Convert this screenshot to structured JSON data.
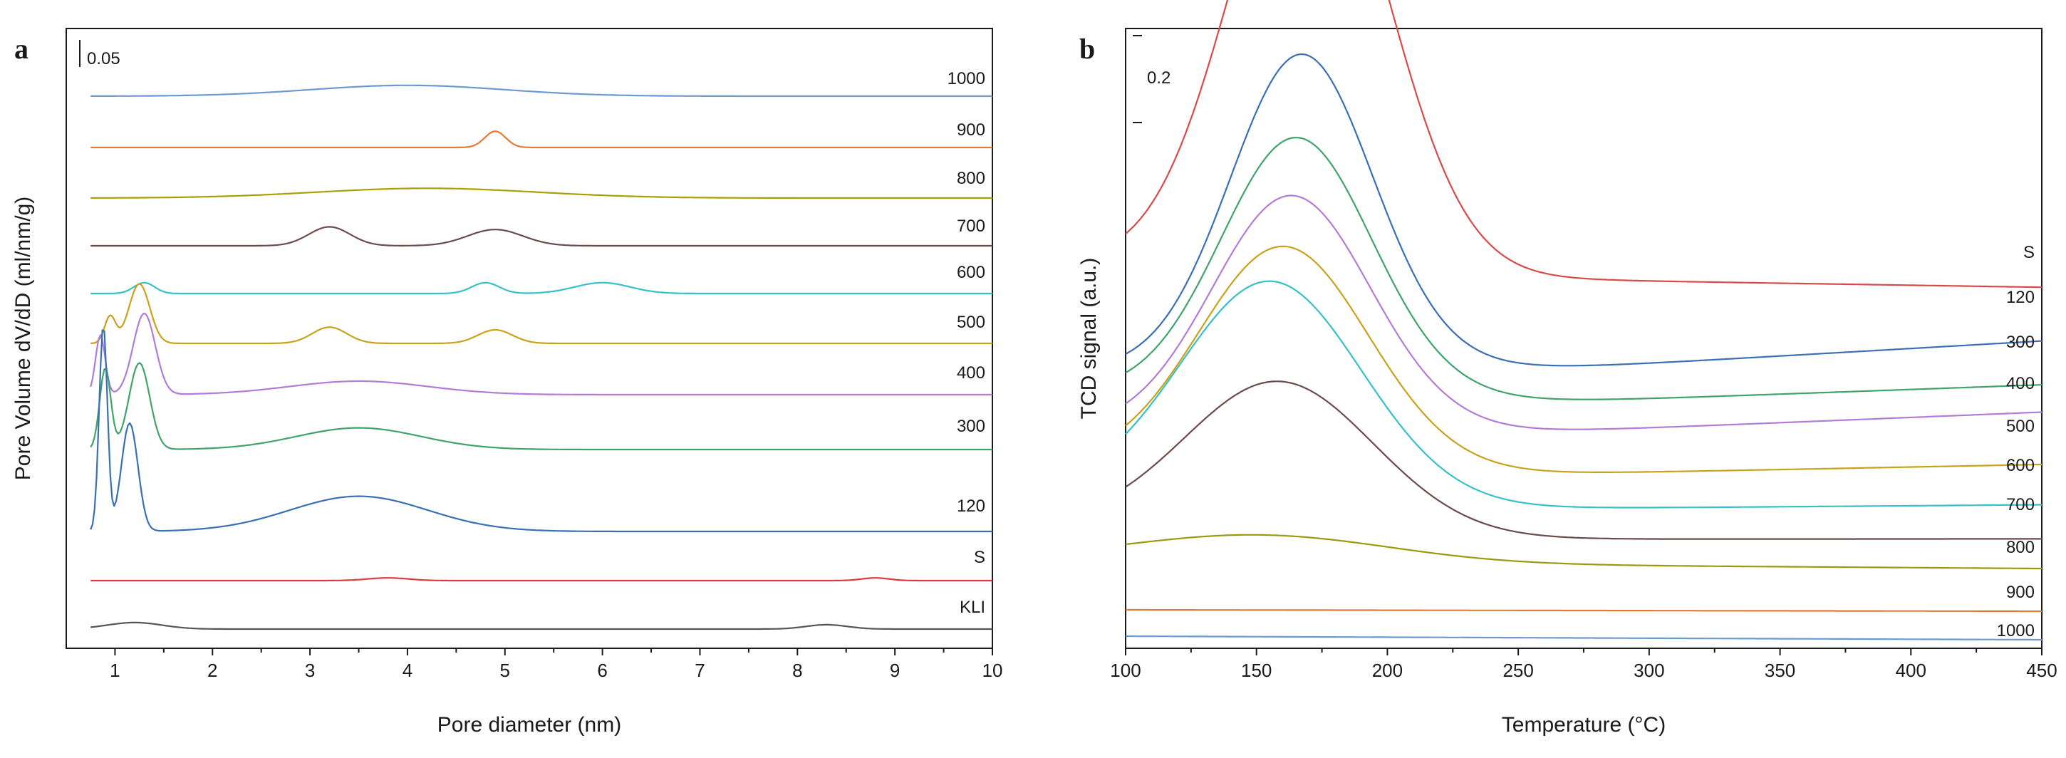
{
  "chart_data": [
    {
      "type": "line",
      "panel_label": "a",
      "title": "",
      "xlabel": "Pore diameter (nm)",
      "ylabel": "Pore Volume dV/dD (ml/nm/g)",
      "xlim": [
        0.5,
        10
      ],
      "xticks": [
        "1",
        "2",
        "3",
        "4",
        "5",
        "6",
        "7",
        "8",
        "9",
        "10"
      ],
      "yticks_shown": false,
      "scale_bar_label": "0.05",
      "scale_bar_value": 0.05,
      "stacked_offset_plot": true,
      "series": [
        {
          "name": "1000",
          "color": "#6a9ad0",
          "baseline": 0.0,
          "peaks": [
            {
              "x": 4.0,
              "h": 0.02,
              "w": 1.4
            }
          ]
        },
        {
          "name": "900",
          "color": "#e07b39",
          "baseline": 0.0,
          "peaks": [
            {
              "x": 4.9,
              "h": 0.03,
              "w": 0.15
            }
          ]
        },
        {
          "name": "800",
          "color": "#a8a000",
          "baseline": 0.0,
          "peaks": [
            {
              "x": 4.2,
              "h": 0.018,
              "w": 1.6
            }
          ]
        },
        {
          "name": "700",
          "color": "#6b4a4a",
          "baseline": 0.0,
          "peaks": [
            {
              "x": 3.2,
              "h": 0.035,
              "w": 0.3
            },
            {
              "x": 4.9,
              "h": 0.03,
              "w": 0.4
            }
          ]
        },
        {
          "name": "600",
          "color": "#36c0c8",
          "baseline": 0.0,
          "peaks": [
            {
              "x": 1.3,
              "h": 0.02,
              "w": 0.15
            },
            {
              "x": 4.8,
              "h": 0.02,
              "w": 0.2
            },
            {
              "x": 6.0,
              "h": 0.02,
              "w": 0.4
            }
          ]
        },
        {
          "name": "500",
          "color": "#c8a21a",
          "baseline": 0.0,
          "peaks": [
            {
              "x": 0.95,
              "h": 0.05,
              "w": 0.08
            },
            {
              "x": 1.25,
              "h": 0.11,
              "w": 0.15
            },
            {
              "x": 3.2,
              "h": 0.03,
              "w": 0.25
            },
            {
              "x": 4.9,
              "h": 0.025,
              "w": 0.25
            }
          ]
        },
        {
          "name": "400",
          "color": "#b27cd6",
          "baseline": 0.0,
          "peaks": [
            {
              "x": 0.85,
              "h": 0.11,
              "w": 0.07
            },
            {
              "x": 1.3,
              "h": 0.15,
              "w": 0.16
            },
            {
              "x": 3.5,
              "h": 0.025,
              "w": 1.0
            }
          ]
        },
        {
          "name": "300",
          "color": "#3fa36a",
          "baseline": 0.0,
          "peaks": [
            {
              "x": 0.9,
              "h": 0.15,
              "w": 0.08
            },
            {
              "x": 1.25,
              "h": 0.16,
              "w": 0.15
            },
            {
              "x": 3.5,
              "h": 0.04,
              "w": 0.9
            }
          ]
        },
        {
          "name": "120",
          "color": "#3a6fb5",
          "baseline": 0.0,
          "peaks": [
            {
              "x": 0.88,
              "h": 0.38,
              "w": 0.06
            },
            {
              "x": 1.15,
              "h": 0.2,
              "w": 0.12
            },
            {
              "x": 3.5,
              "h": 0.065,
              "w": 1.0
            }
          ]
        },
        {
          "name": "S",
          "color": "#e03a3a",
          "baseline": 0.0,
          "peaks": [
            {
              "x": 3.8,
              "h": 0.005,
              "w": 0.3
            },
            {
              "x": 8.8,
              "h": 0.005,
              "w": 0.2
            }
          ]
        },
        {
          "name": "KLI",
          "color": "#555555",
          "baseline": 0.0,
          "peaks": [
            {
              "x": 1.2,
              "h": 0.012,
              "w": 0.4
            },
            {
              "x": 8.3,
              "h": 0.008,
              "w": 0.3
            }
          ]
        }
      ]
    },
    {
      "type": "line",
      "panel_label": "b",
      "title": "",
      "xlabel": "Temperature (°C)",
      "ylabel": "TCD signal (a.u.)",
      "xlim": [
        100,
        450
      ],
      "xticks": [
        "100",
        "150",
        "200",
        "250",
        "300",
        "350",
        "400",
        "450"
      ],
      "yticks_shown": false,
      "scale_bar_label": "0.2",
      "scale_bar_value": 0.2,
      "stacked_offset_plot": true,
      "series": [
        {
          "name": "S",
          "color": "#d84a4a",
          "start": 0.0,
          "peak_t": 170,
          "peak_h": 1.05,
          "width": 42,
          "tail": 0.1
        },
        {
          "name": "120",
          "color": "#3a6fb5",
          "start": 0.0,
          "peak_t": 167,
          "peak_h": 0.7,
          "width": 38,
          "tail": 0.24
        },
        {
          "name": "300",
          "color": "#3fa36a",
          "start": 0.0,
          "peak_t": 165,
          "peak_h": 0.57,
          "width": 40,
          "tail": 0.25
        },
        {
          "name": "400",
          "color": "#b27cd6",
          "start": 0.0,
          "peak_t": 163,
          "peak_h": 0.52,
          "width": 42,
          "tail": 0.2
        },
        {
          "name": "500",
          "color": "#c8a21a",
          "start": 0.0,
          "peak_t": 160,
          "peak_h": 0.49,
          "width": 45,
          "tail": 0.19
        },
        {
          "name": "600",
          "color": "#36c0c8",
          "start": 0.0,
          "peak_t": 155,
          "peak_h": 0.48,
          "width": 48,
          "tail": 0.2
        },
        {
          "name": "700",
          "color": "#6b4a4a",
          "start": 0.0,
          "peak_t": 158,
          "peak_h": 0.33,
          "width": 50,
          "tail": 0.14
        },
        {
          "name": "800",
          "color": "#9a9a10",
          "start": 0.0,
          "peak_t": 150,
          "peak_h": 0.06,
          "width": 70,
          "tail": 0.02
        },
        {
          "name": "900",
          "color": "#e07b39",
          "start": 0.0,
          "peak_t": 150,
          "peak_h": 0.0,
          "width": 50,
          "tail": 0.0
        },
        {
          "name": "1000",
          "color": "#6a9ad0",
          "start": 0.0,
          "peak_t": 150,
          "peak_h": 0.0,
          "width": 50,
          "tail": 0.0
        }
      ]
    }
  ]
}
